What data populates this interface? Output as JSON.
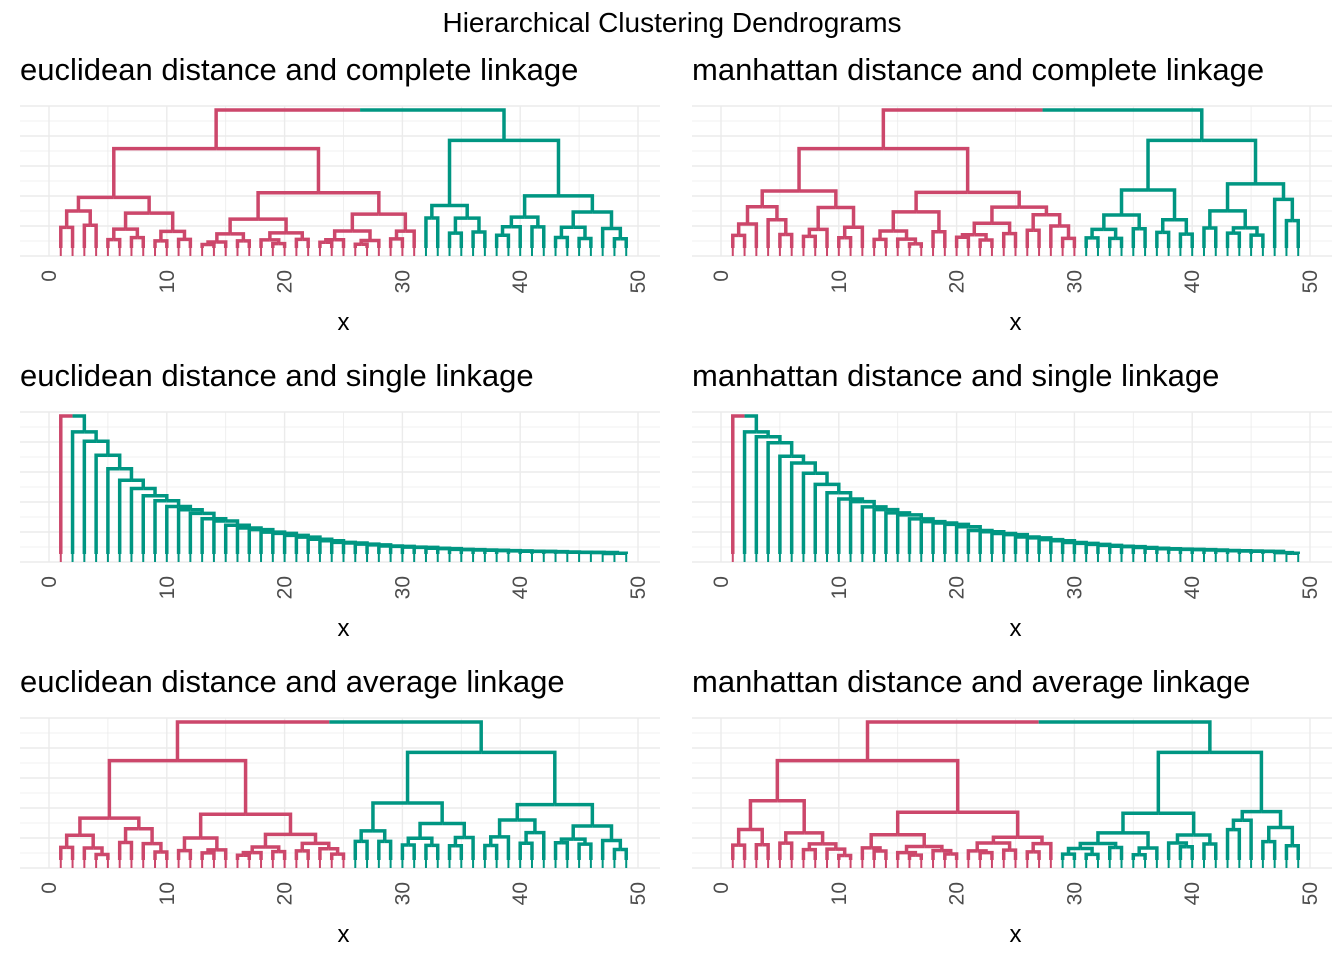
{
  "title": "Hierarchical Clustering Dendrograms",
  "colors": {
    "cluster_1": "#CC476B",
    "cluster_2": "#009682",
    "grid": "#EBEBEB",
    "tick": "#4D4D4D"
  },
  "chart_data": [
    {
      "type": "dendrogram",
      "title": "euclidean distance and complete linkage",
      "xlabel": "x",
      "xlim": [
        0,
        50
      ],
      "x_ticks": [
        0,
        10,
        20,
        30,
        40,
        50
      ],
      "leaves": 49,
      "clusters": 2,
      "cluster_split_x": 25.5,
      "grid": true,
      "seed": 11
    },
    {
      "type": "dendrogram",
      "title": "manhattan distance and complete linkage",
      "xlabel": "x",
      "xlim": [
        0,
        50
      ],
      "x_ticks": [
        0,
        10,
        20,
        30,
        40,
        50
      ],
      "leaves": 49,
      "clusters": 2,
      "cluster_split_x": 25,
      "grid": true,
      "seed": 23
    },
    {
      "type": "dendrogram",
      "title": "euclidean distance and single linkage",
      "xlabel": "x",
      "xlim": [
        0,
        50
      ],
      "x_ticks": [
        0,
        10,
        20,
        30,
        40,
        50
      ],
      "leaves": 49,
      "clusters": 2,
      "cluster_split_x": 2.5,
      "grid": true,
      "seed": 37
    },
    {
      "type": "dendrogram",
      "title": "manhattan distance and single linkage",
      "xlabel": "x",
      "xlim": [
        0,
        50
      ],
      "x_ticks": [
        0,
        10,
        20,
        30,
        40,
        50
      ],
      "leaves": 49,
      "clusters": 2,
      "cluster_split_x": 2.5,
      "grid": true,
      "seed": 41
    },
    {
      "type": "dendrogram",
      "title": "euclidean distance and average linkage",
      "xlabel": "x",
      "xlim": [
        0,
        50
      ],
      "x_ticks": [
        0,
        10,
        20,
        30,
        40,
        50
      ],
      "leaves": 49,
      "clusters": 2,
      "cluster_split_x": 21,
      "grid": true,
      "seed": 53
    },
    {
      "type": "dendrogram",
      "title": "manhattan distance and average linkage",
      "xlabel": "x",
      "xlim": [
        0,
        50
      ],
      "x_ticks": [
        0,
        10,
        20,
        30,
        40,
        50
      ],
      "leaves": 49,
      "clusters": 2,
      "cluster_split_x": 23.5,
      "grid": true,
      "seed": 67
    }
  ]
}
